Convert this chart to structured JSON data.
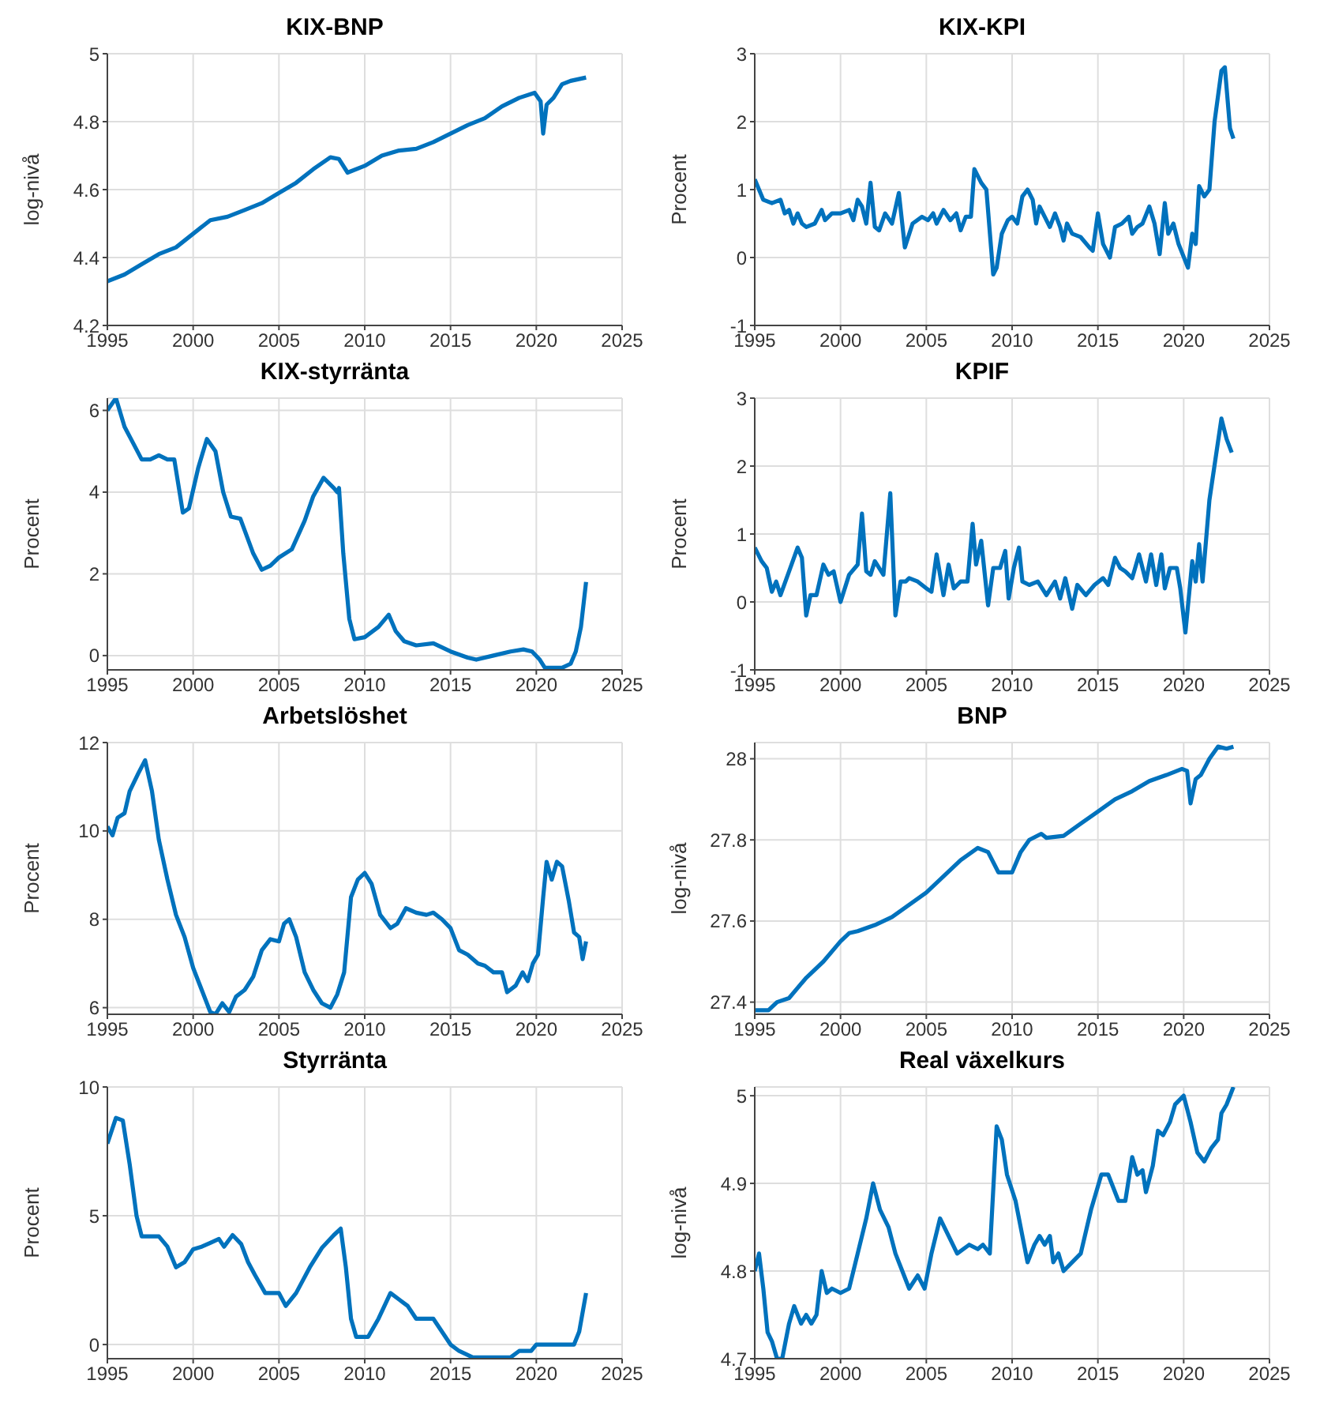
{
  "chart_data": [
    {
      "type": "line",
      "title": "KIX-BNP",
      "ylabel": "log-nivå",
      "color": "#0072bd",
      "grid": true,
      "xlim": [
        1995,
        2025
      ],
      "xticks": [
        1995,
        2000,
        2005,
        2010,
        2015,
        2020,
        2025
      ],
      "ylim": [
        4.2,
        5
      ],
      "yticks": [
        4.2,
        4.4,
        4.6,
        4.8,
        5
      ],
      "x": [
        1995,
        1996,
        1997,
        1998,
        1999,
        2000,
        2001,
        2002,
        2003,
        2004,
        2005,
        2006,
        2007,
        2008,
        2008.5,
        2009,
        2010,
        2011,
        2012,
        2013,
        2014,
        2015,
        2016,
        2017,
        2018,
        2019,
        2019.9,
        2020.25,
        2020.4,
        2020.6,
        2021,
        2021.5,
        2022,
        2022.9
      ],
      "values": [
        4.33,
        4.35,
        4.38,
        4.41,
        4.43,
        4.47,
        4.51,
        4.52,
        4.54,
        4.56,
        4.59,
        4.62,
        4.66,
        4.695,
        4.69,
        4.65,
        4.67,
        4.7,
        4.715,
        4.72,
        4.74,
        4.765,
        4.79,
        4.81,
        4.845,
        4.87,
        4.885,
        4.86,
        4.765,
        4.85,
        4.87,
        4.91,
        4.92,
        4.93
      ]
    },
    {
      "type": "line",
      "title": "KIX-KPI",
      "ylabel": "Procent",
      "color": "#0072bd",
      "grid": true,
      "xlim": [
        1995,
        2025
      ],
      "xticks": [
        1995,
        2000,
        2005,
        2010,
        2015,
        2020,
        2025
      ],
      "ylim": [
        -1,
        3
      ],
      "yticks": [
        -1,
        0,
        1,
        2,
        3
      ],
      "x": [
        1995,
        1995.25,
        1995.5,
        1996,
        1996.5,
        1996.75,
        1997,
        1997.25,
        1997.5,
        1997.75,
        1998,
        1998.5,
        1998.9,
        1999.1,
        1999.5,
        2000,
        2000.5,
        2000.75,
        2001,
        2001.25,
        2001.5,
        2001.75,
        2002,
        2002.25,
        2002.6,
        2003,
        2003.4,
        2003.75,
        2004.2,
        2004.75,
        2005.1,
        2005.4,
        2005.6,
        2006,
        2006.4,
        2006.75,
        2007,
        2007.3,
        2007.6,
        2007.8,
        2008.2,
        2008.5,
        2008.9,
        2009.1,
        2009.4,
        2009.75,
        2010,
        2010.3,
        2010.6,
        2010.9,
        2011.2,
        2011.4,
        2011.6,
        2011.9,
        2012.2,
        2012.5,
        2012.8,
        2013,
        2013.2,
        2013.5,
        2014,
        2014.5,
        2014.7,
        2015,
        2015.3,
        2015.7,
        2016,
        2016.4,
        2016.8,
        2017,
        2017.3,
        2017.6,
        2018,
        2018.3,
        2018.6,
        2018.9,
        2019.1,
        2019.4,
        2019.7,
        2020.25,
        2020.5,
        2020.7,
        2020.9,
        2021.2,
        2021.5,
        2021.8,
        2022.2,
        2022.4,
        2022.7,
        2022.9
      ],
      "values": [
        1.15,
        1,
        0.85,
        0.8,
        0.85,
        0.65,
        0.7,
        0.5,
        0.65,
        0.5,
        0.45,
        0.5,
        0.7,
        0.55,
        0.65,
        0.65,
        0.7,
        0.55,
        0.85,
        0.75,
        0.5,
        1.1,
        0.45,
        0.4,
        0.65,
        0.5,
        0.95,
        0.15,
        0.5,
        0.6,
        0.55,
        0.65,
        0.5,
        0.7,
        0.55,
        0.65,
        0.4,
        0.6,
        0.6,
        1.3,
        1.1,
        1,
        -0.25,
        -0.15,
        0.35,
        0.55,
        0.6,
        0.5,
        0.9,
        1,
        0.85,
        0.5,
        0.75,
        0.6,
        0.45,
        0.65,
        0.45,
        0.25,
        0.5,
        0.35,
        0.3,
        0.15,
        0.1,
        0.65,
        0.2,
        0,
        0.45,
        0.5,
        0.6,
        0.35,
        0.45,
        0.5,
        0.75,
        0.5,
        0.05,
        0.8,
        0.35,
        0.5,
        0.2,
        -0.15,
        0.35,
        0.2,
        1.05,
        0.9,
        1,
        2,
        2.75,
        2.8,
        1.9,
        1.75
      ]
    },
    {
      "type": "line",
      "title": "KIX-styrränta",
      "ylabel": "Procent",
      "color": "#0072bd",
      "grid": true,
      "xlim": [
        1995,
        2025
      ],
      "xticks": [
        1995,
        2000,
        2005,
        2010,
        2015,
        2020,
        2025
      ],
      "ylim": [
        -0.35,
        6.3
      ],
      "yticks": [
        0,
        2,
        4,
        6
      ],
      "x": [
        1995,
        1995.5,
        1996,
        1996.5,
        1997,
        1997.5,
        1998,
        1998.5,
        1998.9,
        1999.4,
        1999.75,
        2000.3,
        2000.8,
        2001.3,
        2001.75,
        2002.2,
        2002.75,
        2003.5,
        2004,
        2004.5,
        2005,
        2005.75,
        2006.5,
        2007,
        2007.6,
        2008.2,
        2008.4,
        2008.5,
        2008.75,
        2009.1,
        2009.4,
        2010,
        2010.8,
        2011.4,
        2011.8,
        2012.3,
        2013,
        2014,
        2015,
        2016,
        2016.5,
        2017.5,
        2018.5,
        2019.25,
        2019.75,
        2020.2,
        2020.5,
        2021,
        2021.5,
        2022,
        2022.3,
        2022.6,
        2022.9
      ],
      "values": [
        6,
        6.3,
        5.6,
        5.2,
        4.8,
        4.8,
        4.9,
        4.8,
        4.8,
        3.5,
        3.6,
        4.6,
        5.3,
        5,
        4,
        3.4,
        3.35,
        2.5,
        2.1,
        2.2,
        2.4,
        2.6,
        3.3,
        3.9,
        4.35,
        4.1,
        4,
        4.1,
        2.5,
        0.9,
        0.4,
        0.45,
        0.7,
        1,
        0.6,
        0.35,
        0.25,
        0.3,
        0.1,
        -0.05,
        -0.1,
        0,
        0.1,
        0.15,
        0.1,
        -0.1,
        -0.3,
        -0.3,
        -0.3,
        -0.2,
        0.1,
        0.7,
        1.8
      ]
    },
    {
      "type": "line",
      "title": "KPIF",
      "ylabel": "Procent",
      "color": "#0072bd",
      "grid": true,
      "xlim": [
        1995,
        2025
      ],
      "xticks": [
        1995,
        2000,
        2005,
        2010,
        2015,
        2020,
        2025
      ],
      "ylim": [
        -1,
        3
      ],
      "yticks": [
        -1,
        0,
        1,
        2,
        3
      ],
      "x": [
        1995,
        1995.4,
        1995.7,
        1996,
        1996.25,
        1996.5,
        1997,
        1997.5,
        1997.75,
        1998,
        1998.25,
        1998.6,
        1999,
        1999.3,
        1999.6,
        2000,
        2000.5,
        2001,
        2001.25,
        2001.5,
        2001.75,
        2002,
        2002.5,
        2002.9,
        2003.2,
        2003.5,
        2003.8,
        2004,
        2004.5,
        2005,
        2005.3,
        2005.6,
        2006,
        2006.3,
        2006.6,
        2007,
        2007.4,
        2007.7,
        2007.9,
        2008.2,
        2008.6,
        2008.9,
        2009.3,
        2009.6,
        2009.8,
        2010.1,
        2010.4,
        2010.6,
        2011,
        2011.5,
        2012,
        2012.5,
        2012.8,
        2013.1,
        2013.5,
        2013.8,
        2014.3,
        2014.8,
        2015.3,
        2015.6,
        2016,
        2016.3,
        2016.6,
        2017,
        2017.4,
        2017.8,
        2018.1,
        2018.4,
        2018.7,
        2018.9,
        2019.2,
        2019.6,
        2019.8,
        2020.1,
        2020.5,
        2020.7,
        2020.9,
        2021.1,
        2021.5,
        2022.2,
        2022.5,
        2022.8
      ],
      "values": [
        0.8,
        0.6,
        0.5,
        0.15,
        0.3,
        0.1,
        0.45,
        0.8,
        0.65,
        -0.2,
        0.1,
        0.1,
        0.55,
        0.4,
        0.45,
        0,
        0.4,
        0.55,
        1.3,
        0.45,
        0.4,
        0.6,
        0.4,
        1.6,
        -0.2,
        0.3,
        0.3,
        0.35,
        0.3,
        0.2,
        0.15,
        0.7,
        0.1,
        0.55,
        0.2,
        0.3,
        0.3,
        1.15,
        0.55,
        0.9,
        -0.05,
        0.5,
        0.5,
        0.75,
        0.05,
        0.5,
        0.8,
        0.3,
        0.25,
        0.3,
        0.1,
        0.3,
        0.05,
        0.35,
        -0.1,
        0.25,
        0.1,
        0.25,
        0.35,
        0.25,
        0.65,
        0.5,
        0.45,
        0.35,
        0.7,
        0.3,
        0.7,
        0.25,
        0.7,
        0.2,
        0.5,
        0.5,
        0.2,
        -0.45,
        0.6,
        0.3,
        0.85,
        0.3,
        1.5,
        2.7,
        2.4,
        2.2
      ]
    },
    {
      "type": "line",
      "title": "Arbetslöshet",
      "ylabel": "Procent",
      "color": "#0072bd",
      "grid": true,
      "xlim": [
        1995,
        2025
      ],
      "xticks": [
        1995,
        2000,
        2005,
        2010,
        2015,
        2020,
        2025
      ],
      "ylim": [
        5.85,
        12
      ],
      "yticks": [
        6,
        8,
        10,
        12
      ],
      "x": [
        1995,
        1995.3,
        1995.6,
        1996,
        1996.3,
        1996.8,
        1997.2,
        1997.6,
        1998,
        1998.5,
        1999,
        1999.5,
        2000,
        2000.5,
        2001,
        2001.3,
        2001.7,
        2002.1,
        2002.5,
        2003,
        2003.5,
        2004,
        2004.5,
        2005,
        2005.3,
        2005.6,
        2006,
        2006.5,
        2007,
        2007.5,
        2008,
        2008.4,
        2008.8,
        2009.2,
        2009.6,
        2010,
        2010.4,
        2010.9,
        2011.5,
        2011.9,
        2012.4,
        2013,
        2013.6,
        2014,
        2014.5,
        2015,
        2015.5,
        2016,
        2016.6,
        2017,
        2017.5,
        2018,
        2018.3,
        2018.8,
        2019.2,
        2019.5,
        2019.8,
        2020.1,
        2020.4,
        2020.6,
        2020.9,
        2021.2,
        2021.5,
        2021.9,
        2022.2,
        2022.5,
        2022.7,
        2022.9
      ],
      "values": [
        10.1,
        9.9,
        10.3,
        10.4,
        10.9,
        11.3,
        11.6,
        10.9,
        9.8,
        8.9,
        8.1,
        7.6,
        6.9,
        6.4,
        5.9,
        5.85,
        6.1,
        5.9,
        6.25,
        6.4,
        6.7,
        7.3,
        7.55,
        7.5,
        7.9,
        8,
        7.6,
        6.8,
        6.4,
        6.1,
        6,
        6.3,
        6.8,
        8.5,
        8.9,
        9.05,
        8.8,
        8.1,
        7.8,
        7.9,
        8.25,
        8.15,
        8.1,
        8.15,
        8,
        7.8,
        7.3,
        7.2,
        7,
        6.95,
        6.8,
        6.8,
        6.35,
        6.5,
        6.8,
        6.6,
        7,
        7.2,
        8.5,
        9.3,
        8.9,
        9.3,
        9.2,
        8.4,
        7.7,
        7.6,
        7.1,
        7.5
      ]
    },
    {
      "type": "line",
      "title": "BNP",
      "ylabel": "log-nivå",
      "color": "#0072bd",
      "grid": true,
      "xlim": [
        1995,
        2025
      ],
      "xticks": [
        1995,
        2000,
        2005,
        2010,
        2015,
        2020,
        2025
      ],
      "ylim": [
        27.37,
        28.04
      ],
      "yticks": [
        27.4,
        27.6,
        27.8,
        28
      ],
      "x": [
        1995,
        1995.8,
        1996.3,
        1997,
        1998,
        1999,
        2000,
        2000.5,
        2001,
        2002,
        2003,
        2004,
        2005,
        2006,
        2007,
        2008,
        2008.6,
        2009.2,
        2010,
        2010.5,
        2011,
        2011.7,
        2012,
        2013,
        2014,
        2015,
        2016,
        2017,
        2018,
        2019,
        2019.9,
        2020.2,
        2020.4,
        2020.7,
        2021,
        2021.5,
        2022,
        2022.5,
        2022.9
      ],
      "values": [
        27.38,
        27.38,
        27.4,
        27.41,
        27.46,
        27.5,
        27.55,
        27.57,
        27.575,
        27.59,
        27.61,
        27.64,
        27.67,
        27.71,
        27.75,
        27.78,
        27.77,
        27.72,
        27.72,
        27.77,
        27.8,
        27.815,
        27.805,
        27.81,
        27.84,
        27.87,
        27.9,
        27.92,
        27.945,
        27.96,
        27.975,
        27.97,
        27.89,
        27.95,
        27.96,
        28,
        28.03,
        28.025,
        28.03
      ]
    },
    {
      "type": "line",
      "title": "Styrränta",
      "ylabel": "Procent",
      "color": "#0072bd",
      "grid": true,
      "xlim": [
        1995,
        2025
      ],
      "xticks": [
        1995,
        2000,
        2005,
        2010,
        2015,
        2020,
        2025
      ],
      "ylim": [
        -0.55,
        10
      ],
      "yticks": [
        0,
        5,
        10
      ],
      "x": [
        1995,
        1995.5,
        1995.9,
        1996.3,
        1996.7,
        1997,
        1998,
        1998.5,
        1999,
        1999.5,
        2000,
        2000.5,
        2001,
        2001.5,
        2001.8,
        2002.3,
        2002.8,
        2003.2,
        2003.6,
        2004.2,
        2005,
        2005.4,
        2006,
        2006.8,
        2007.5,
        2008.2,
        2008.6,
        2008.9,
        2009.2,
        2009.5,
        2010.2,
        2010.8,
        2011.5,
        2012,
        2012.5,
        2013,
        2014,
        2014.5,
        2015,
        2015.5,
        2016.3,
        2018.5,
        2019,
        2019.7,
        2020,
        2022.2,
        2022.5,
        2022.9
      ],
      "values": [
        7.8,
        8.8,
        8.7,
        7,
        5,
        4.2,
        4.2,
        3.8,
        3,
        3.2,
        3.7,
        3.8,
        3.95,
        4.1,
        3.8,
        4.25,
        3.9,
        3.2,
        2.7,
        2,
        2,
        1.5,
        2,
        3,
        3.75,
        4.25,
        4.5,
        3,
        1,
        0.3,
        0.3,
        1,
        2,
        1.75,
        1.5,
        1,
        1,
        0.5,
        0,
        -0.25,
        -0.5,
        -0.5,
        -0.25,
        -0.25,
        0,
        0,
        0.5,
        2
      ]
    },
    {
      "type": "line",
      "title": "Real växelkurs",
      "ylabel": "log-nivå",
      "color": "#0072bd",
      "grid": true,
      "xlim": [
        1995,
        2025
      ],
      "xticks": [
        1995,
        2000,
        2005,
        2010,
        2015,
        2020,
        2025
      ],
      "ylim": [
        4.7,
        5.01
      ],
      "yticks": [
        4.7,
        4.8,
        4.9,
        5
      ],
      "x": [
        1995,
        1995.25,
        1995.5,
        1995.75,
        1996,
        1996.3,
        1996.6,
        1997,
        1997.3,
        1997.7,
        1998,
        1998.3,
        1998.6,
        1998.9,
        1999.2,
        1999.5,
        2000,
        2000.5,
        2001,
        2001.5,
        2001.9,
        2002.3,
        2002.8,
        2003.2,
        2003.6,
        2004,
        2004.5,
        2004.9,
        2005.3,
        2005.8,
        2006.3,
        2006.8,
        2007.5,
        2008,
        2008.3,
        2008.7,
        2009.1,
        2009.4,
        2009.7,
        2010.2,
        2010.6,
        2010.9,
        2011.3,
        2011.6,
        2011.9,
        2012.2,
        2012.4,
        2012.7,
        2013,
        2013.5,
        2014,
        2014.6,
        2015.2,
        2015.6,
        2016.2,
        2016.6,
        2017,
        2017.3,
        2017.6,
        2017.8,
        2018.2,
        2018.5,
        2018.8,
        2019.2,
        2019.5,
        2020,
        2020.4,
        2020.8,
        2021.2,
        2021.6,
        2022,
        2022.2,
        2022.5,
        2022.9
      ],
      "values": [
        4.8,
        4.82,
        4.78,
        4.73,
        4.72,
        4.7,
        4.7,
        4.74,
        4.76,
        4.74,
        4.75,
        4.74,
        4.75,
        4.8,
        4.775,
        4.78,
        4.775,
        4.78,
        4.82,
        4.86,
        4.9,
        4.87,
        4.85,
        4.82,
        4.8,
        4.78,
        4.795,
        4.78,
        4.82,
        4.86,
        4.84,
        4.82,
        4.83,
        4.825,
        4.83,
        4.82,
        4.965,
        4.95,
        4.91,
        4.88,
        4.84,
        4.81,
        4.83,
        4.84,
        4.83,
        4.84,
        4.81,
        4.82,
        4.8,
        4.81,
        4.82,
        4.87,
        4.91,
        4.91,
        4.88,
        4.88,
        4.93,
        4.91,
        4.915,
        4.89,
        4.92,
        4.96,
        4.955,
        4.97,
        4.99,
        5,
        4.97,
        4.935,
        4.925,
        4.94,
        4.95,
        4.98,
        4.99,
        5.01
      ]
    }
  ]
}
